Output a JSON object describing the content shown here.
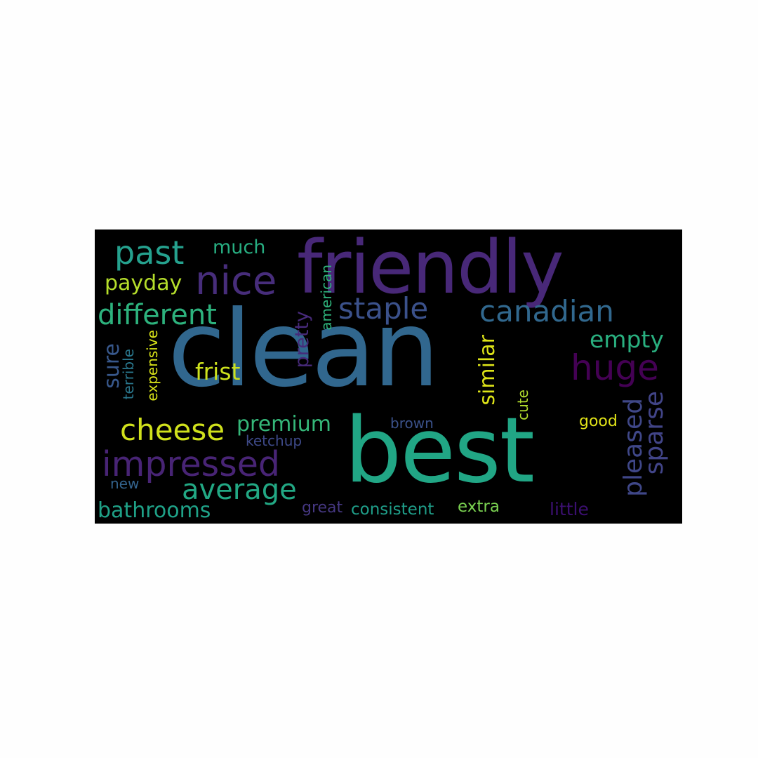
{
  "words": {
    "clean": {
      "text": "clean",
      "color": "#31678e"
    },
    "best": {
      "text": "best",
      "color": "#21a685"
    },
    "friendly": {
      "text": "friendly",
      "color": "#482878"
    },
    "nice": {
      "text": "nice",
      "color": "#472d7b"
    },
    "past": {
      "text": "past",
      "color": "#25a18e"
    },
    "much": {
      "text": "much",
      "color": "#27ad81"
    },
    "payday": {
      "text": "payday",
      "color": "#b5de2b"
    },
    "different": {
      "text": "different",
      "color": "#2db27d"
    },
    "staple": {
      "text": "staple",
      "color": "#3b518b"
    },
    "canadian": {
      "text": "canadian",
      "color": "#31688e"
    },
    "huge": {
      "text": "huge",
      "color": "#440154"
    },
    "empty": {
      "text": "empty",
      "color": "#29af7f"
    },
    "frist": {
      "text": "frist",
      "color": "#cde11d"
    },
    "sure": {
      "text": "sure",
      "color": "#38588c"
    },
    "terrible": {
      "text": "terrible",
      "color": "#2a788e"
    },
    "expensive": {
      "text": "expensive",
      "color": "#d8e219"
    },
    "pretty": {
      "text": "pretty",
      "color": "#472a7a"
    },
    "american": {
      "text": "american",
      "color": "#2fb47c"
    },
    "similar": {
      "text": "similar",
      "color": "#dde318"
    },
    "cheese": {
      "text": "cheese",
      "color": "#d0e11c"
    },
    "premium": {
      "text": "premium",
      "color": "#35b779"
    },
    "impressed": {
      "text": "impressed",
      "color": "#482475"
    },
    "ketchup": {
      "text": "ketchup",
      "color": "#3e4a89"
    },
    "brown": {
      "text": "brown",
      "color": "#3b528b"
    },
    "cute": {
      "text": "cute",
      "color": "#b2dd2d"
    },
    "good": {
      "text": "good",
      "color": "#e2e418"
    },
    "pleased": {
      "text": "pleased",
      "color": "#3f4788"
    },
    "sparse": {
      "text": "sparse",
      "color": "#414487"
    },
    "average": {
      "text": "average",
      "color": "#22a884"
    },
    "new": {
      "text": "new",
      "color": "#33638d"
    },
    "bathrooms": {
      "text": "bathrooms",
      "color": "#1fa187"
    },
    "great": {
      "text": "great",
      "color": "#453781"
    },
    "consistent": {
      "text": "consistent",
      "color": "#1f9e89"
    },
    "extra": {
      "text": "extra",
      "color": "#7ad151"
    },
    "little": {
      "text": "little",
      "color": "#3b0f70"
    }
  }
}
